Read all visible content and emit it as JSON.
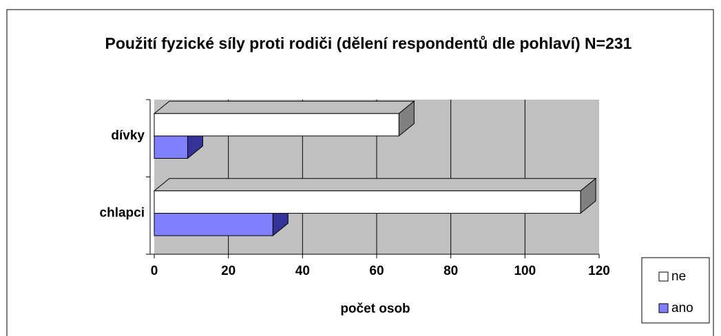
{
  "chart_data": {
    "type": "bar3d_horizontal",
    "title": "Použití fyzické síly proti rodiči (dělení respondentů dle pohlaví) N=231",
    "x_label": "počet osob",
    "categories": [
      "chlapci",
      "dívky"
    ],
    "series": [
      {
        "name": "ne",
        "color": "#ffffff",
        "side_color": "#808080",
        "values": [
          115,
          66
        ]
      },
      {
        "name": "ano",
        "color": "#8080ff",
        "side_color": "#333399",
        "values": [
          32,
          9
        ]
      }
    ],
    "xlim": [
      0,
      120
    ],
    "xticks": [
      0,
      20,
      40,
      60,
      80,
      100,
      120
    ],
    "grid": true,
    "legend": "right"
  }
}
